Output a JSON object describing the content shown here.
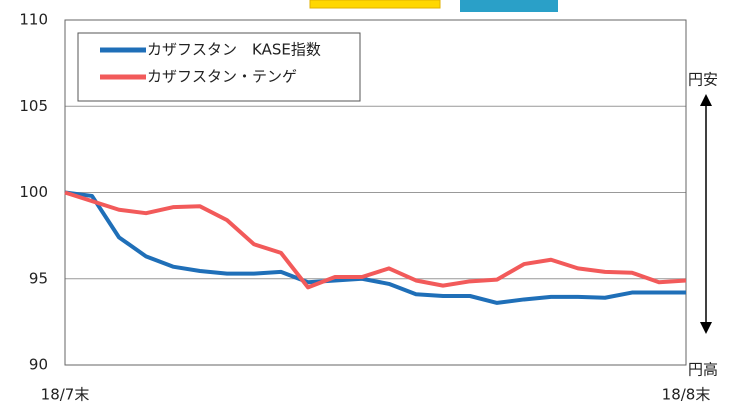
{
  "chart_data": {
    "type": "line",
    "categories": [
      "18/7末",
      null,
      null,
      null,
      null,
      null,
      null,
      null,
      null,
      null,
      null,
      null,
      null,
      null,
      null,
      null,
      null,
      null,
      null,
      null,
      null,
      null,
      null,
      "18/8末"
    ],
    "series": [
      {
        "name": "カザフスタン　KASE指数",
        "color": "#1f6fb8",
        "values": [
          100,
          99.8,
          97.4,
          96.3,
          95.7,
          95.45,
          95.3,
          95.3,
          95.4,
          94.8,
          94.9,
          95.0,
          94.7,
          94.1,
          94.0,
          94.0,
          93.6,
          93.8,
          93.95,
          93.95,
          93.9,
          94.2,
          94.2,
          94.2
        ]
      },
      {
        "name": "カザフスタン・テンゲ",
        "color": "#f25a5a",
        "values": [
          100,
          99.5,
          99.0,
          98.8,
          99.15,
          99.2,
          98.4,
          97.0,
          96.5,
          94.5,
          95.1,
          95.1,
          95.6,
          94.9,
          94.6,
          94.85,
          94.95,
          95.85,
          96.1,
          95.6,
          95.4,
          95.35,
          94.8,
          94.9
        ]
      }
    ],
    "ylim": [
      90,
      110
    ],
    "yticks": [
      90,
      95,
      100,
      105,
      110
    ],
    "grid": true,
    "legend": "upper left",
    "annotations": [
      "円安",
      "円高"
    ]
  }
}
